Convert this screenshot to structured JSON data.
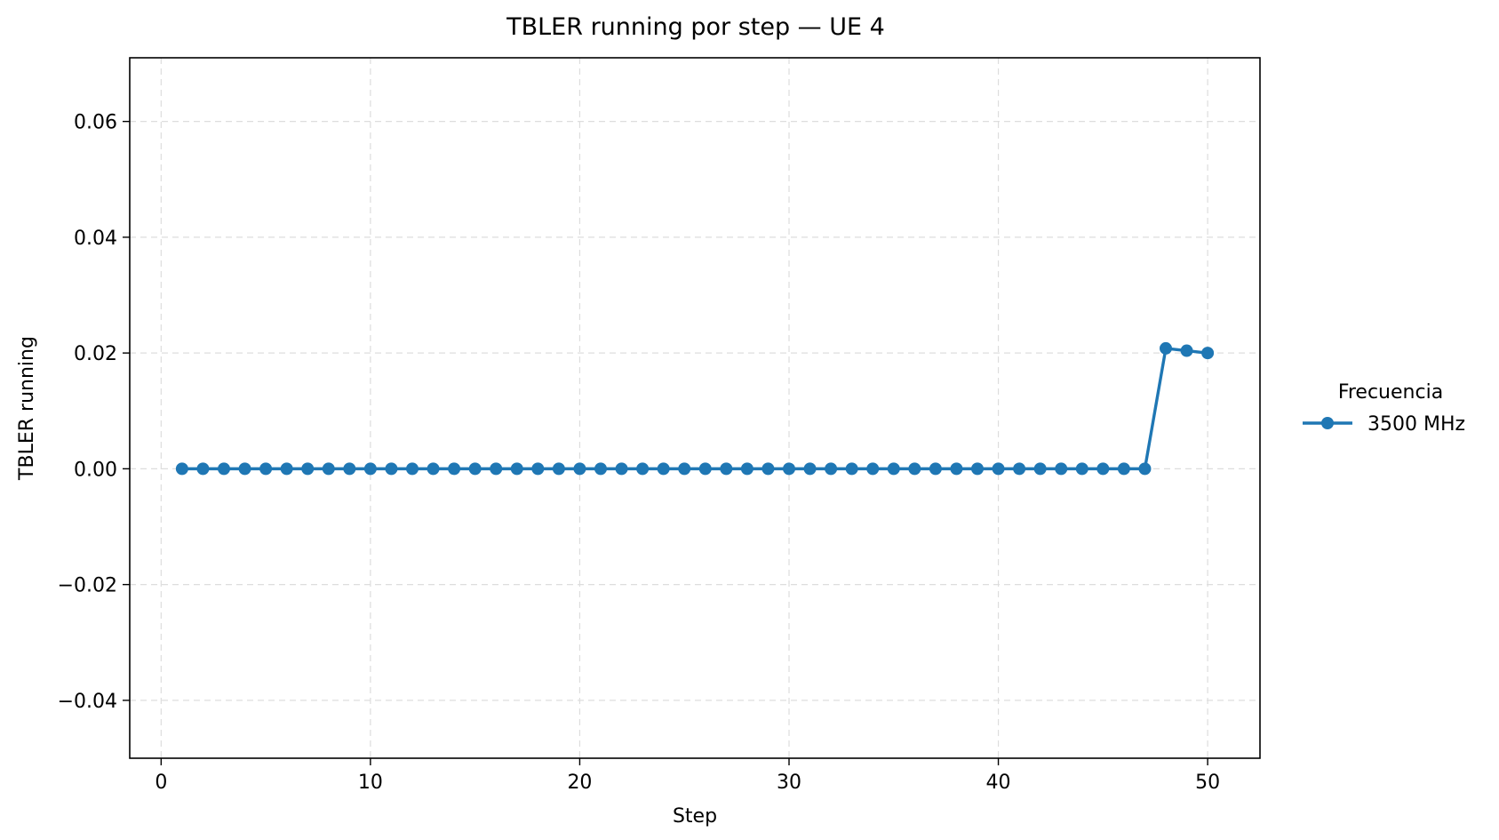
{
  "chart_data": {
    "type": "line",
    "title": "TBLER running por step — UE 4",
    "xlabel": "Step",
    "ylabel": "TBLER running",
    "xlim": [
      -1.5,
      52.5
    ],
    "ylim": [
      -0.05,
      0.071
    ],
    "x_ticks": [
      0,
      10,
      20,
      30,
      40,
      50
    ],
    "x_tick_labels": [
      "0",
      "10",
      "20",
      "30",
      "40",
      "50"
    ],
    "y_ticks": [
      -0.04,
      -0.02,
      0.0,
      0.02,
      0.04,
      0.06
    ],
    "y_tick_labels": [
      "−0.04",
      "−0.02",
      "0.00",
      "0.02",
      "0.04",
      "0.06"
    ],
    "grid": true,
    "legend": {
      "title": "Frecuencia",
      "placement": "right-outside"
    },
    "series": [
      {
        "name": "3500 MHz",
        "color": "#1f77b4",
        "marker": "circle",
        "x": [
          1,
          2,
          3,
          4,
          5,
          6,
          7,
          8,
          9,
          10,
          11,
          12,
          13,
          14,
          15,
          16,
          17,
          18,
          19,
          20,
          21,
          22,
          23,
          24,
          25,
          26,
          27,
          28,
          29,
          30,
          31,
          32,
          33,
          34,
          35,
          36,
          37,
          38,
          39,
          40,
          41,
          42,
          43,
          44,
          45,
          46,
          47,
          48,
          49,
          50
        ],
        "y": [
          0,
          0,
          0,
          0,
          0,
          0,
          0,
          0,
          0,
          0,
          0,
          0,
          0,
          0,
          0,
          0,
          0,
          0,
          0,
          0,
          0,
          0,
          0,
          0,
          0,
          0,
          0,
          0,
          0,
          0,
          0,
          0,
          0,
          0,
          0,
          0,
          0,
          0,
          0,
          0,
          0,
          0,
          0,
          0,
          0,
          0,
          0,
          0.0208,
          0.0204,
          0.02
        ]
      }
    ]
  }
}
